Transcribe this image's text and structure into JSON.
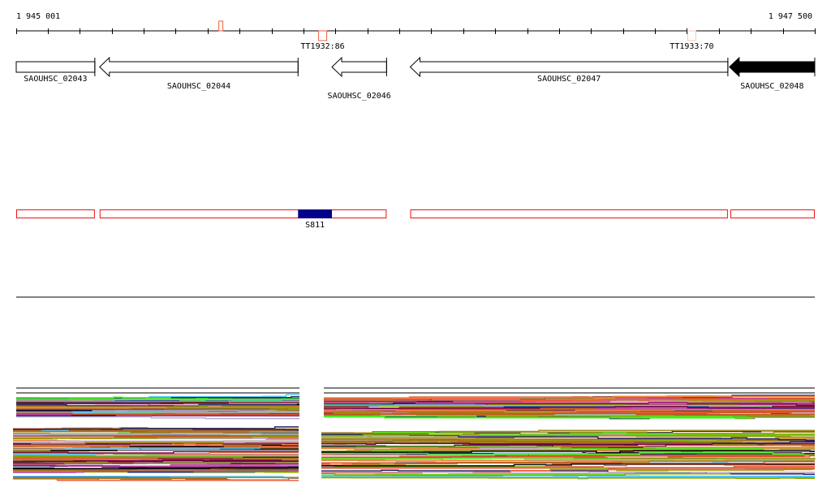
{
  "ruler": {
    "start_label": "1 945 001",
    "end_label": "1 947 500",
    "start_bp": 1945001,
    "end_bp": 1947500,
    "tick_step_bp": 100
  },
  "markers": [
    {
      "label": "",
      "bp": 1945640,
      "color": "#f06040"
    },
    {
      "label": "TT1932:86",
      "bp": 1945960,
      "color": "#f06040"
    },
    {
      "label": "TT1933:70",
      "bp": 1947115,
      "color": "#f8c8b8"
    }
  ],
  "genes": [
    {
      "name": "SAOUHSC_02043",
      "start": 1945001,
      "end": 1945247,
      "strand": "-",
      "filled": false,
      "arrow": false
    },
    {
      "name": "SAOUHSC_02044",
      "start": 1945262,
      "end": 1945883,
      "strand": "-",
      "filled": false,
      "arrow": true
    },
    {
      "name": "SAOUHSC_02046",
      "start": 1945989,
      "end": 1946160,
      "strand": "-",
      "filled": false,
      "arrow": true
    },
    {
      "name": "SAOUHSC_02047",
      "start": 1946234,
      "end": 1947228,
      "strand": "-",
      "filled": false,
      "arrow": true
    },
    {
      "name": "SAOUHSC_02048",
      "start": 1947233,
      "end": 1947500,
      "strand": "-",
      "filled": true,
      "arrow": true
    }
  ],
  "regions": [
    {
      "start": 1945001,
      "end": 1945247
    },
    {
      "start": 1945262,
      "end": 1946160
    },
    {
      "start": 1946234,
      "end": 1947228
    },
    {
      "start": 1947236,
      "end": 1947500
    }
  ],
  "feature": {
    "label": "S811",
    "start": 1945883,
    "end": 1945989,
    "color": "#000088"
  },
  "colors": {
    "region": "#ee1111",
    "palette": [
      "#000000",
      "#b8a8cc",
      "#c040a0",
      "#55c8ff",
      "#44ee22",
      "#f06040",
      "#a08820",
      "#d05020",
      "#88aa00",
      "#770044",
      "#222266",
      "#ee8844",
      "#aa6622",
      "#66aa00",
      "#ffffff"
    ]
  }
}
